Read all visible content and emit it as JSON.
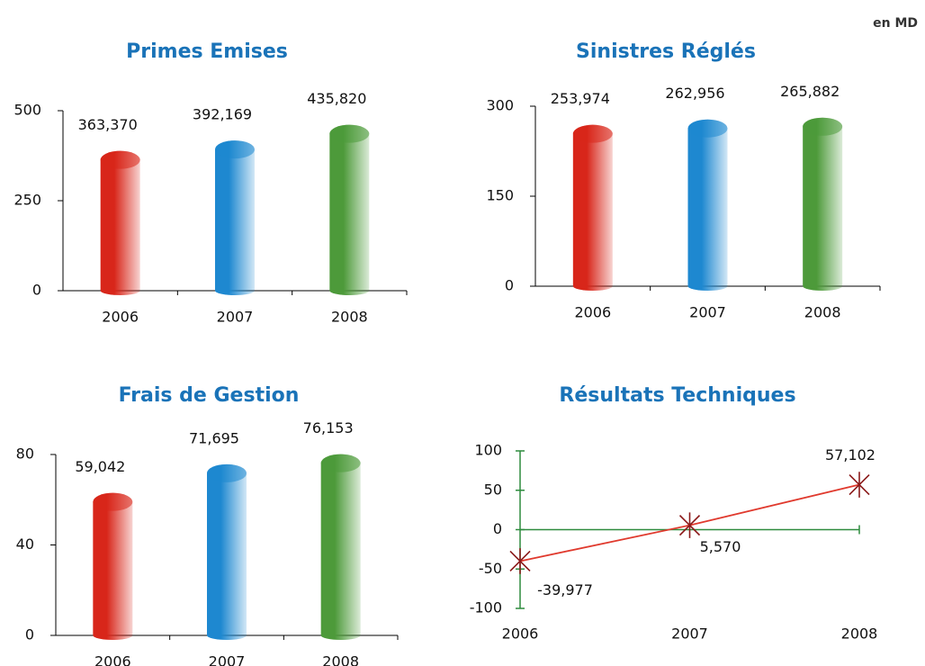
{
  "unit_note": "en MD",
  "chart_data": [
    {
      "type": "bar",
      "title": "Primes Emises",
      "categories": [
        "2006",
        "2007",
        "2008"
      ],
      "values": [
        363.37,
        392.169,
        435.82
      ],
      "value_labels": [
        "363,370",
        "392,169",
        "435,820"
      ],
      "colors": [
        "#d8261a",
        "#1e88d0",
        "#4d9a3a"
      ],
      "ylim": [
        0,
        500
      ],
      "yticks": [
        0,
        250,
        500
      ]
    },
    {
      "type": "bar",
      "title": "Sinistres Réglés",
      "categories": [
        "2006",
        "2007",
        "2008"
      ],
      "values": [
        253.974,
        262.956,
        265.882
      ],
      "value_labels": [
        "253,974",
        "262,956",
        "265,882"
      ],
      "colors": [
        "#d8261a",
        "#1e88d0",
        "#4d9a3a"
      ],
      "ylim": [
        0,
        300
      ],
      "yticks": [
        0,
        150,
        300
      ]
    },
    {
      "type": "bar",
      "title": "Frais de Gestion",
      "categories": [
        "2006",
        "2007",
        "2008"
      ],
      "values": [
        59.042,
        71.695,
        76.153
      ],
      "value_labels": [
        "59,042",
        "71,695",
        "76,153"
      ],
      "colors": [
        "#d8261a",
        "#1e88d0",
        "#4d9a3a"
      ],
      "ylim": [
        0,
        80
      ],
      "yticks": [
        0,
        40,
        80
      ]
    },
    {
      "type": "line",
      "title": "Résultats Techniques",
      "categories": [
        "2006",
        "2007",
        "2008"
      ],
      "values": [
        -39.977,
        5.57,
        57.102
      ],
      "value_labels": [
        "-39,977",
        "5,570",
        "57,102"
      ],
      "color": "#e03a2e",
      "marker_color": "#8b1a1a",
      "axis_color": "#2e8b3e",
      "ylim": [
        -100,
        100
      ],
      "yticks": [
        -100,
        -50,
        0,
        50,
        100
      ]
    }
  ]
}
